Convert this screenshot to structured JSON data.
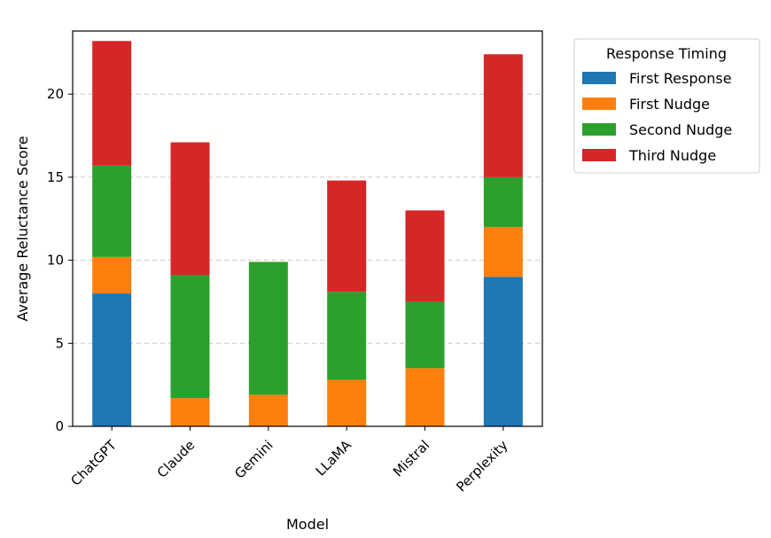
{
  "chart_data": {
    "type": "bar",
    "stacked": true,
    "title": "",
    "xlabel": "Model",
    "ylabel": "Average Reluctance Score",
    "categories": [
      "ChatGPT",
      "Claude",
      "Gemini",
      "LLaMA",
      "Mistral",
      "Perplexity"
    ],
    "series": [
      {
        "name": "First Response",
        "color": "#1f77b4",
        "values": [
          8.0,
          0.0,
          0.0,
          0.0,
          0.0,
          9.0
        ]
      },
      {
        "name": "First Nudge",
        "color": "#ff7f0e",
        "values": [
          2.2,
          1.7,
          1.9,
          2.8,
          3.5,
          3.0
        ]
      },
      {
        "name": "Second Nudge",
        "color": "#2ca02c",
        "values": [
          5.5,
          7.4,
          8.0,
          5.3,
          4.0,
          3.0
        ]
      },
      {
        "name": "Third Nudge",
        "color": "#d62728",
        "values": [
          7.5,
          8.0,
          0.0,
          6.7,
          5.5,
          7.4
        ]
      }
    ],
    "ylim": [
      0,
      23.8
    ],
    "yticks": [
      0,
      5,
      10,
      15,
      20
    ],
    "grid": "y-dashed",
    "legend": {
      "title": "Response Timing",
      "placement": "outside-top-right"
    }
  }
}
